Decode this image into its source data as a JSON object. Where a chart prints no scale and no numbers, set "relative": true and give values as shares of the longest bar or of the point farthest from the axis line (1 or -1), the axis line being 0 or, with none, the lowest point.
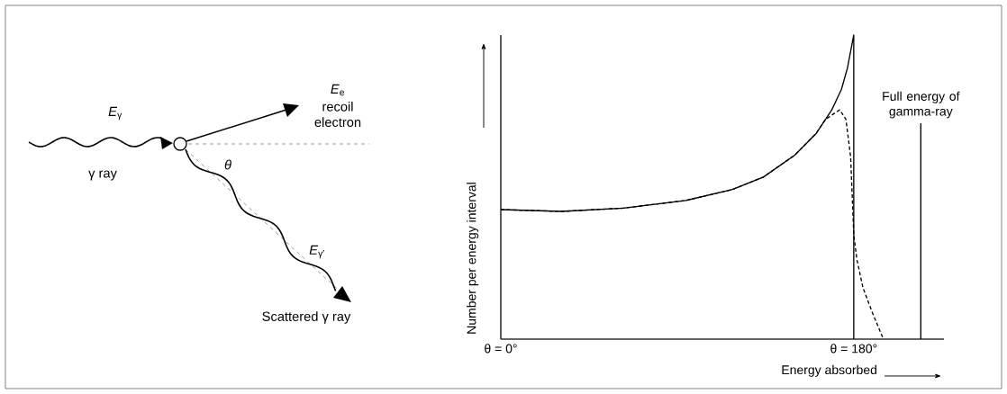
{
  "chart_data": [
    {
      "type": "other",
      "annotations": [
        "*E*$_{γ}$",
        "γ ray",
        "θ",
        "*E*$_{e}$",
        "recoil electron",
        "*E*$_{γ′}$",
        "Scattered γ ray"
      ]
    },
    {
      "type": "line",
      "relative": true,
      "xlabel": "Energy absorbed",
      "ylabel": "Number per energy interval",
      "xlim": [
        0,
        226
      ],
      "xticks": [
        {
          "value": 0,
          "label": "θ = 0°"
        },
        {
          "value": 180,
          "label": "θ = 180°"
        }
      ],
      "series": [
        {
          "color": "#000000",
          "line_style": "solid",
          "x": [
            0,
            31,
            62.6,
            94.3,
            118.1,
            133.9,
            149.9,
            160.9,
            168.8,
            173.7,
            176.8,
            180,
            180
          ],
          "values": [
            0.426,
            0.42,
            0.431,
            0.456,
            0.492,
            0.533,
            0.605,
            0.677,
            0.754,
            0.821,
            0.892,
            1.0,
            0
          ]
        },
        {
          "color": "#000000",
          "line_style": "dashed",
          "x": [
            0,
            31,
            62.6,
            94.3,
            118.1,
            133.9,
            149.9,
            160.9,
            165.6,
            172.8,
            176,
            178.4,
            180,
            181.6,
            184.7,
            189.5,
            195.1
          ],
          "values": [
            0.426,
            0.42,
            0.431,
            0.456,
            0.492,
            0.533,
            0.605,
            0.677,
            0.723,
            0.754,
            0.723,
            0.6,
            0.344,
            0.262,
            0.169,
            0.087,
            0
          ]
        },
        {
          "name": "Full energy of gamma-ray",
          "color": "#000000",
          "line_style": "solid",
          "x": [
            214.2,
            214.2
          ],
          "values": [
            0,
            0.71
          ]
        }
      ]
    }
  ]
}
